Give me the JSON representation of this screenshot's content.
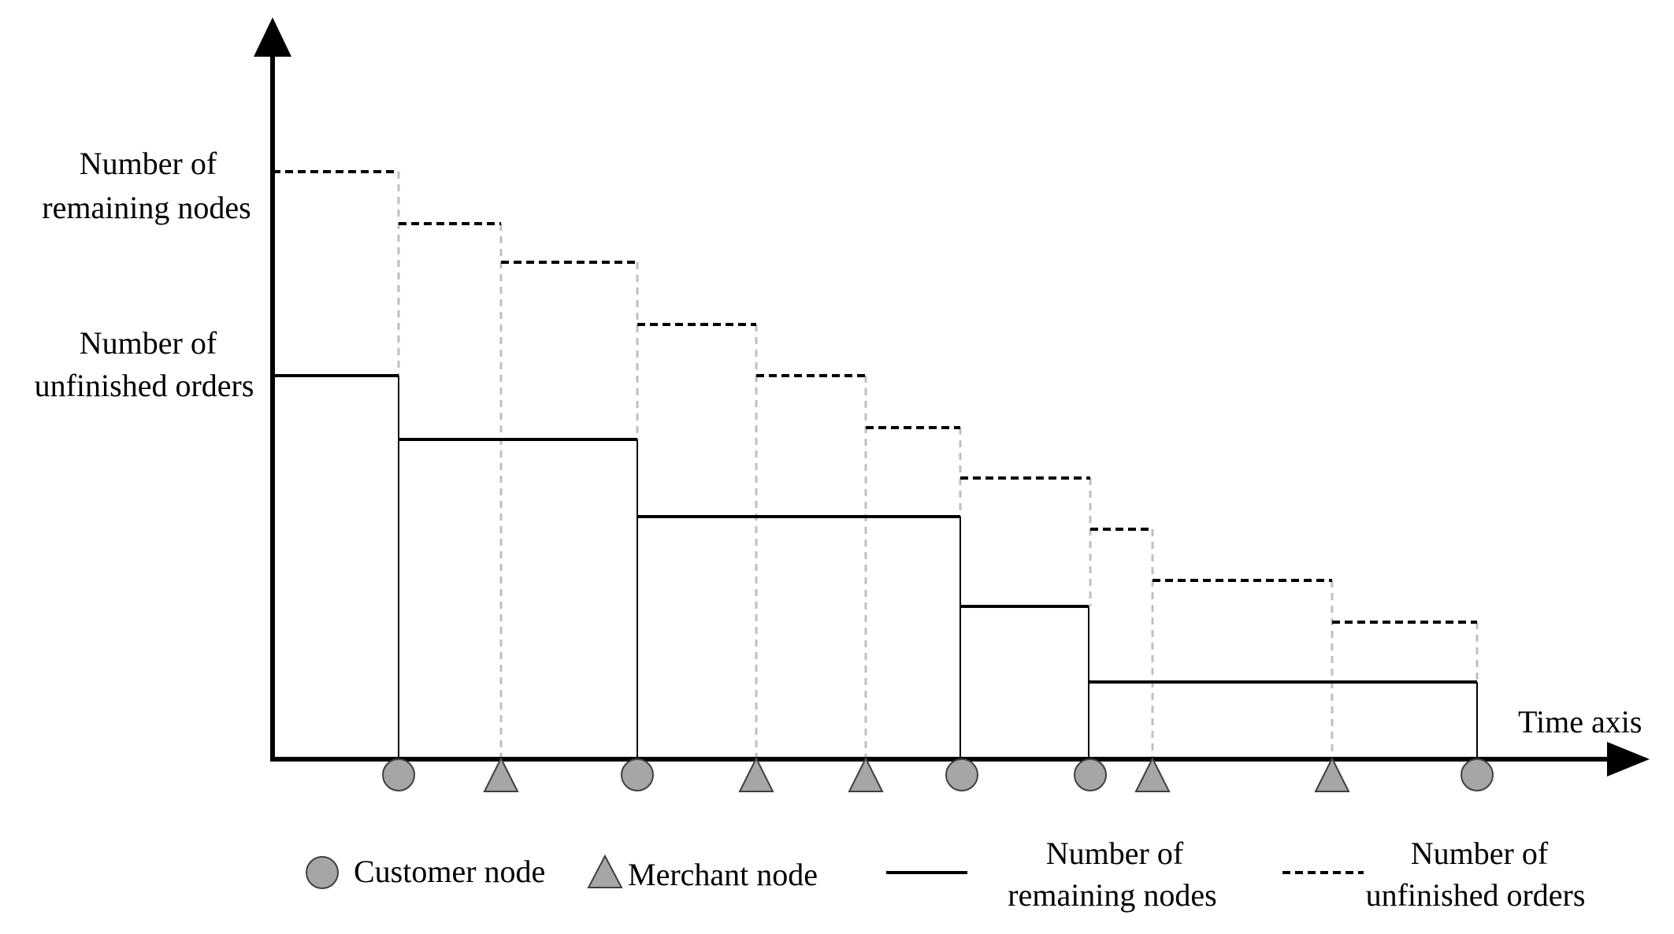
{
  "y_labels": {
    "remaining_nodes": {
      "line1": "Number of",
      "line2": "remaining nodes"
    },
    "unfinished_orders": {
      "line1": "Number of",
      "line2": "unfinished orders"
    }
  },
  "x_label": "Time axis",
  "node_sequence": [
    "customer",
    "merchant",
    "customer",
    "merchant",
    "merchant",
    "customer",
    "customer",
    "merchant",
    "merchant",
    "customer"
  ],
  "legend": {
    "customer": "Customer node",
    "merchant": "Merchant node",
    "solid_line": {
      "line1": "Number of",
      "line2": "remaining nodes"
    },
    "dashed_line": {
      "line1": "Number of",
      "line2": "unfinished orders"
    }
  },
  "colors": {
    "axis": "#000000",
    "node_fill": "#a6a6a6",
    "node_stroke": "#3f3f3f",
    "guide_dashed": "#bfbfbf",
    "step_line": "#000000"
  }
}
